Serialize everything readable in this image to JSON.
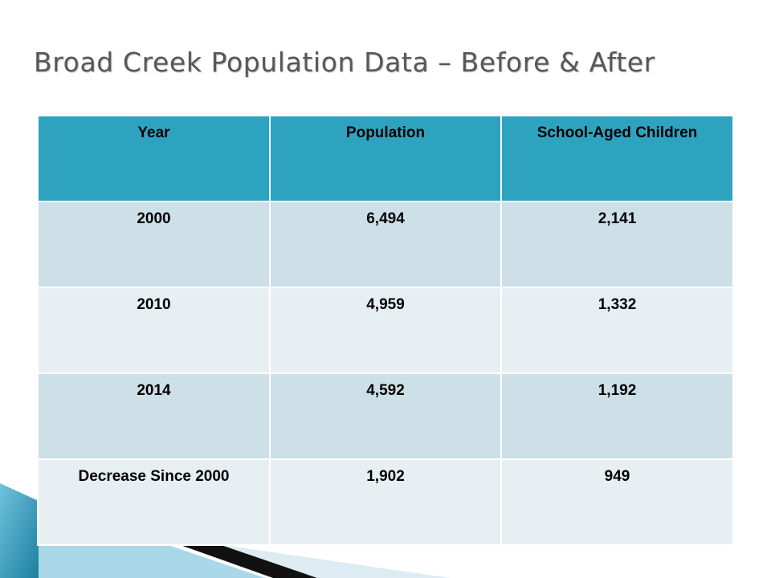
{
  "title": "Broad Creek Population Data – Before & After",
  "table": {
    "headers": [
      "Year",
      "Population",
      "School-Aged Children"
    ],
    "rows": [
      [
        "2000",
        "6,494",
        "2,141"
      ],
      [
        "2010",
        "4,959",
        "1,332"
      ],
      [
        "2014",
        "4,592",
        "1,192"
      ],
      [
        "Decrease Since 2000",
        "1,902",
        "949"
      ]
    ]
  },
  "colors": {
    "header": "#2ea3bf",
    "row_odd": "#cddfe7",
    "row_even": "#e8eff3",
    "title": "#575757",
    "accent": "#1d7fa0"
  }
}
